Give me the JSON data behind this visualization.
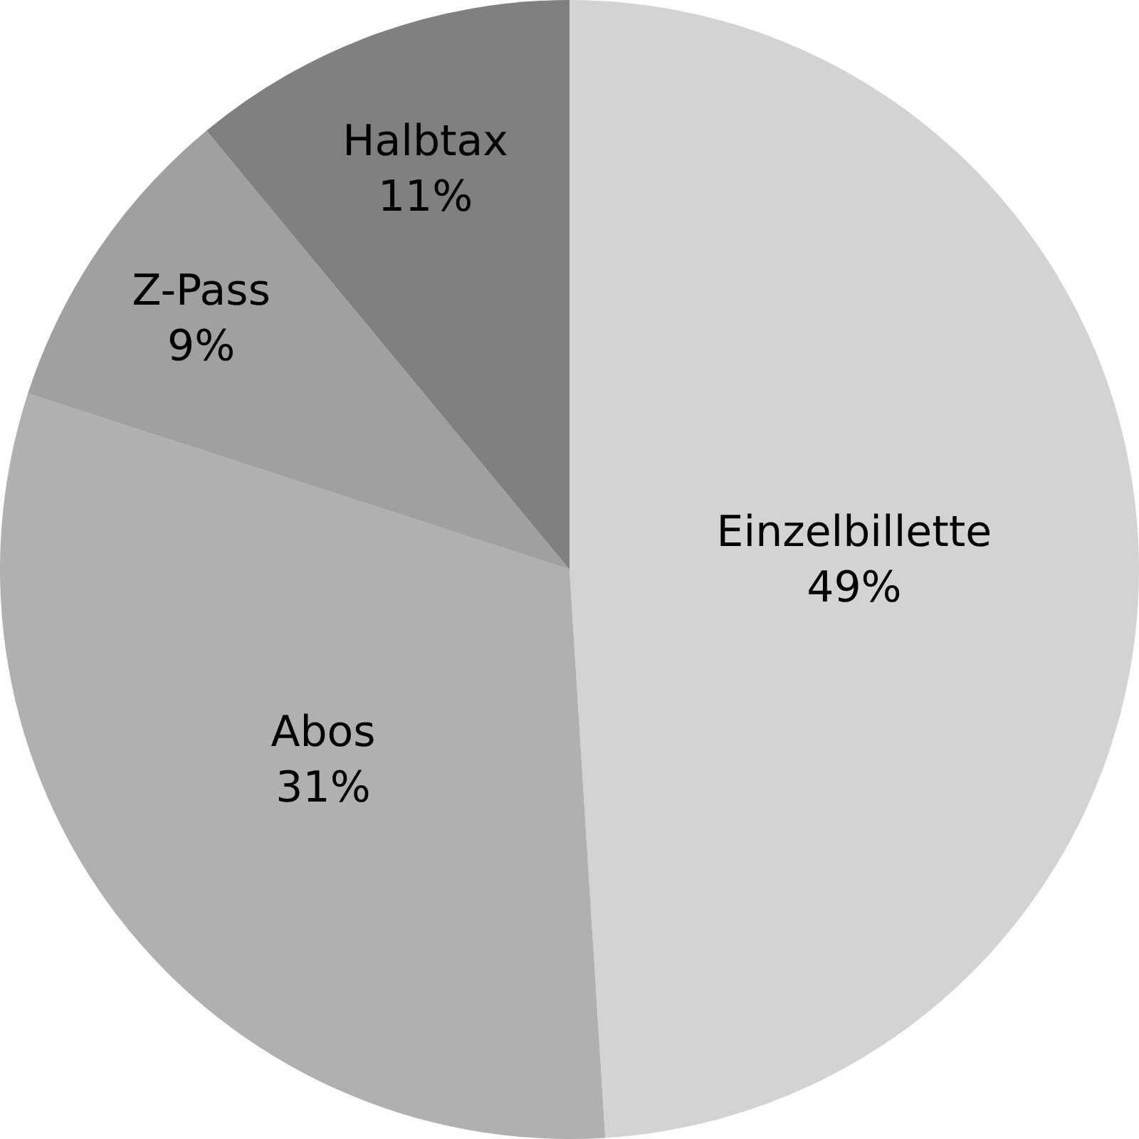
{
  "chart_data": {
    "type": "pie",
    "categories": [
      "Einzelbillette",
      "Abos",
      "Z-Pass",
      "Halbtax"
    ],
    "values": [
      49,
      31,
      9,
      11
    ],
    "value_labels": [
      "49%",
      "31%",
      "9%",
      "11%"
    ],
    "colors": [
      "#d3d3d3",
      "#b0b0b0",
      "#a0a0a0",
      "#808080"
    ],
    "legend": false
  }
}
